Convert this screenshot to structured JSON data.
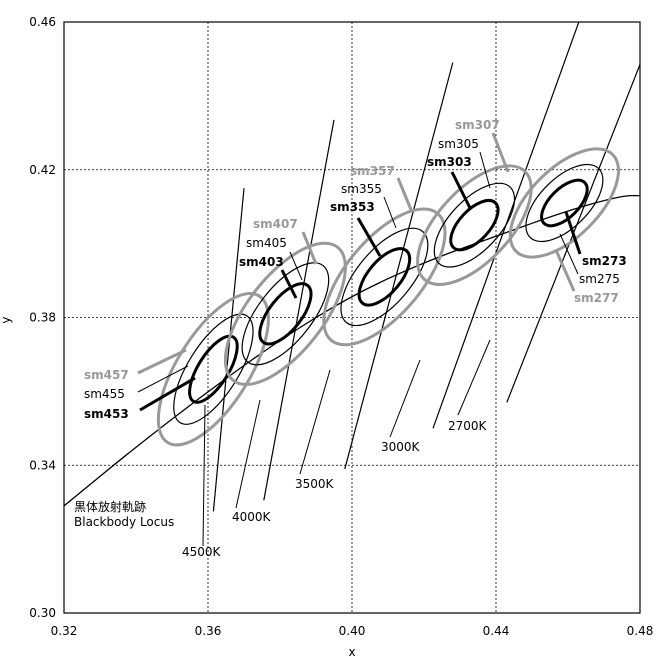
{
  "chart_data": {
    "type": "scatter",
    "xlabel": "x",
    "ylabel": "y",
    "xlim": [
      0.32,
      0.48
    ],
    "ylim": [
      0.3,
      0.46
    ],
    "x_ticks": [
      "0.32",
      "0.36",
      "0.40",
      "0.44",
      "0.48"
    ],
    "y_ticks": [
      "0.30",
      "0.34",
      "0.38",
      "0.42",
      "0.46"
    ],
    "grid": true,
    "locus": {
      "label_line1": "黒体放射軌跡",
      "label_line2": "Blackbody Locus",
      "points": [
        [
          0.32,
          0.329
        ],
        [
          0.34,
          0.345
        ],
        [
          0.36,
          0.36
        ],
        [
          0.38,
          0.374
        ],
        [
          0.4,
          0.386
        ],
        [
          0.42,
          0.395
        ],
        [
          0.44,
          0.402
        ],
        [
          0.46,
          0.409
        ],
        [
          0.475,
          0.413
        ],
        [
          0.48,
          0.413
        ]
      ]
    },
    "isotemp_lines": [
      {
        "label": "4500K",
        "x1": 0.3615,
        "y1": 0.3275,
        "x2": 0.37,
        "y2": 0.415
      },
      {
        "label": "4000K",
        "x1": 0.3755,
        "y1": 0.3305,
        "x2": 0.395,
        "y2": 0.4335
      },
      {
        "label": "3500K",
        "x1": 0.398,
        "y1": 0.339,
        "x2": 0.428,
        "y2": 0.449
      },
      {
        "label": "3000K",
        "x1": 0.4225,
        "y1": 0.35,
        "x2": 0.463,
        "y2": 0.46
      },
      {
        "label": "2700K",
        "x1": 0.443,
        "y1": 0.357,
        "x2": 0.48,
        "y2": 0.4485
      }
    ],
    "ellipses": [
      {
        "cx": 0.3615,
        "cy": 0.366,
        "angle": 58,
        "groups": [
          {
            "label": "sm453",
            "a": 0.0105,
            "b": 0.0042,
            "style": "bold"
          },
          {
            "label": "sm455",
            "a": 0.0175,
            "b": 0.007,
            "style": "normal"
          },
          {
            "label": "sm457",
            "a": 0.024,
            "b": 0.01,
            "style": "gray"
          }
        ]
      },
      {
        "cx": 0.3815,
        "cy": 0.381,
        "angle": 52,
        "groups": [
          {
            "label": "sm403",
            "a": 0.01,
            "b": 0.0045,
            "style": "bold"
          },
          {
            "label": "sm405",
            "a": 0.017,
            "b": 0.0075,
            "style": "normal"
          },
          {
            "label": "sm407",
            "a": 0.0235,
            "b": 0.0105,
            "style": "gray"
          }
        ]
      },
      {
        "cx": 0.409,
        "cy": 0.391,
        "angle": 50,
        "groups": [
          {
            "label": "sm353",
            "a": 0.0095,
            "b": 0.0045,
            "style": "bold"
          },
          {
            "label": "sm355",
            "a": 0.0165,
            "b": 0.0075,
            "style": "normal"
          },
          {
            "label": "sm357",
            "a": 0.023,
            "b": 0.0105,
            "style": "gray"
          }
        ]
      },
      {
        "cx": 0.434,
        "cy": 0.405,
        "angle": 47,
        "groups": [
          {
            "label": "sm303",
            "a": 0.0085,
            "b": 0.0042,
            "style": "bold"
          },
          {
            "label": "sm305",
            "a": 0.0145,
            "b": 0.007,
            "style": "normal"
          },
          {
            "label": "sm307",
            "a": 0.0205,
            "b": 0.01,
            "style": "gray"
          }
        ]
      },
      {
        "cx": 0.459,
        "cy": 0.411,
        "angle": 45,
        "groups": [
          {
            "label": "sm273",
            "a": 0.008,
            "b": 0.004,
            "style": "bold"
          },
          {
            "label": "sm275",
            "a": 0.0135,
            "b": 0.0068,
            "style": "normal"
          },
          {
            "label": "sm277",
            "a": 0.019,
            "b": 0.0095,
            "style": "gray"
          }
        ]
      }
    ]
  }
}
